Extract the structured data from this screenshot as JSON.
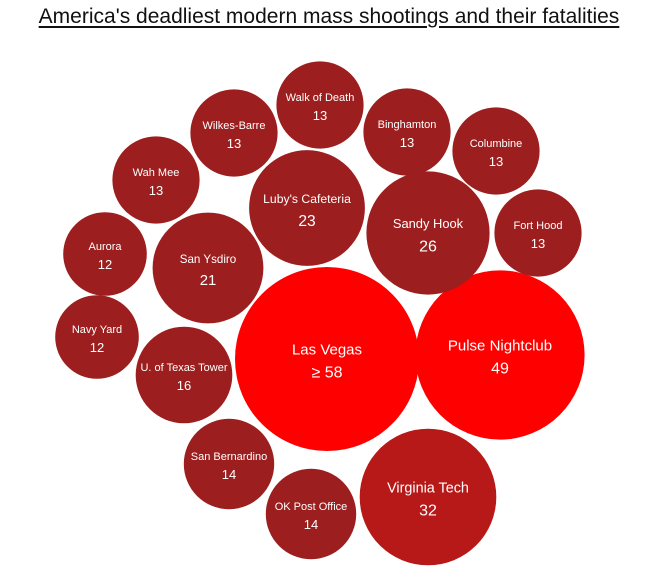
{
  "chart_data": {
    "type": "bubble",
    "title": "America's deadliest modern mass shootings and their fatalities",
    "colors": {
      "largest": "#ff0000",
      "large": "#b71818",
      "default": "#9c1e1e"
    },
    "bubbles": [
      {
        "name": "Las Vegas",
        "label": "≥ 58",
        "value": 58
      },
      {
        "name": "Pulse Nightclub",
        "label": "49",
        "value": 49
      },
      {
        "name": "Virginia Tech",
        "label": "32",
        "value": 32
      },
      {
        "name": "Sandy Hook",
        "label": "26",
        "value": 26
      },
      {
        "name": "Luby's Cafeteria",
        "label": "23",
        "value": 23
      },
      {
        "name": "San Ysdiro",
        "label": "21",
        "value": 21
      },
      {
        "name": "U. of Texas Tower",
        "label": "16",
        "value": 16
      },
      {
        "name": "San Bernardino",
        "label": "14",
        "value": 14
      },
      {
        "name": "OK Post Office",
        "label": "14",
        "value": 14
      },
      {
        "name": "Walk of Death",
        "label": "13",
        "value": 13
      },
      {
        "name": "Wilkes-Barre",
        "label": "13",
        "value": 13
      },
      {
        "name": "Binghamton",
        "label": "13",
        "value": 13
      },
      {
        "name": "Columbine",
        "label": "13",
        "value": 13
      },
      {
        "name": "Wah Mee",
        "label": "13",
        "value": 13
      },
      {
        "name": "Fort Hood",
        "label": "13",
        "value": 13
      },
      {
        "name": "Aurora",
        "label": "12",
        "value": 12
      },
      {
        "name": "Navy Yard",
        "label": "12",
        "value": 12
      }
    ]
  }
}
